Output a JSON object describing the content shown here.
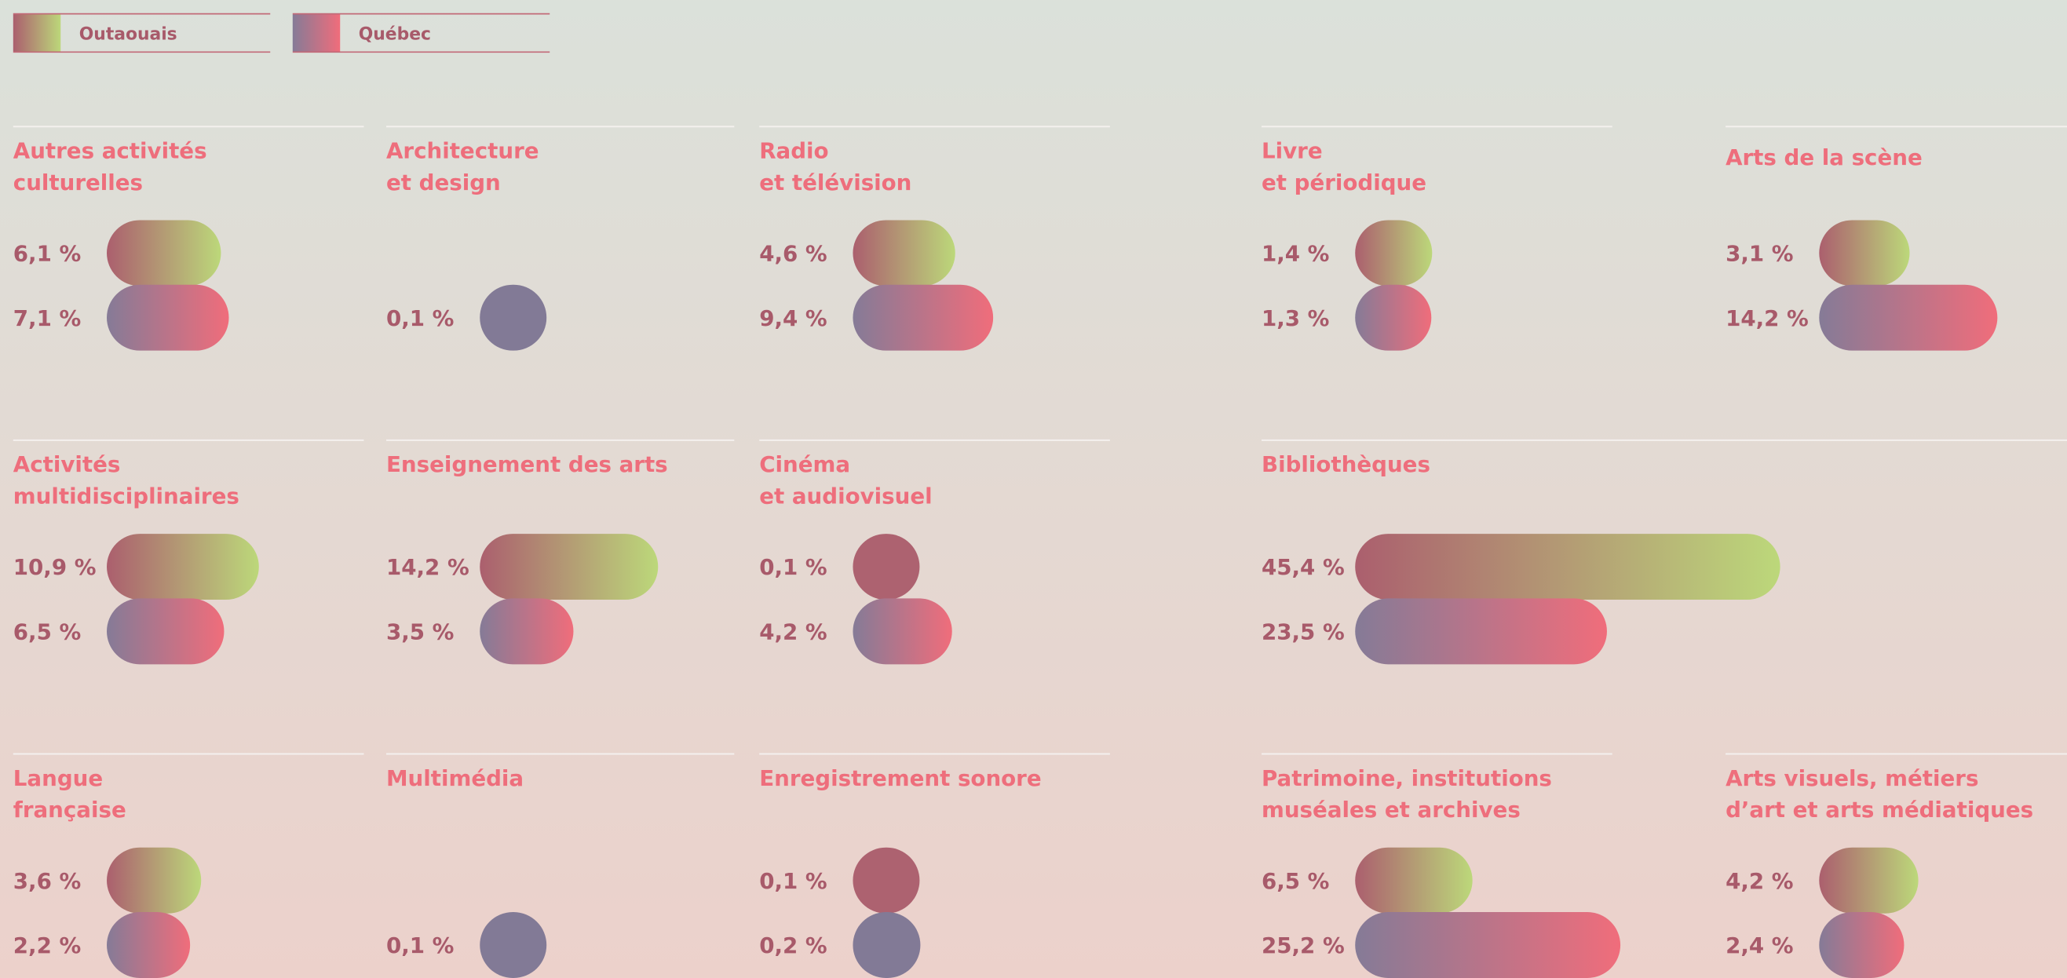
{
  "legend": [
    {
      "name": "Outaouais"
    },
    {
      "name": "Québec"
    }
  ],
  "panels": [
    {
      "title": [
        "Autres activités",
        "culturelles"
      ],
      "values": [
        6.1,
        7.1
      ],
      "value_labels": [
        "6,1 %",
        "7,1 %"
      ]
    },
    {
      "title": [
        "Architecture",
        "et design"
      ],
      "values": [
        null,
        0.1
      ],
      "value_labels": [
        null,
        "0,1 %"
      ]
    },
    {
      "title": [
        "Radio",
        "et télévision"
      ],
      "values": [
        4.6,
        9.4
      ],
      "value_labels": [
        "4,6 %",
        "9,4 %"
      ]
    },
    {
      "title": [
        "Livre",
        "et périodique"
      ],
      "values": [
        1.4,
        1.3
      ],
      "value_labels": [
        "1,4 %",
        "1,3 %"
      ]
    },
    {
      "title": [
        "Arts de la scène"
      ],
      "values": [
        3.1,
        14.2
      ],
      "value_labels": [
        "3,1 %",
        "14,2 %"
      ]
    },
    {
      "title": [
        "Activités",
        "multidisciplinaires"
      ],
      "values": [
        10.9,
        6.5
      ],
      "value_labels": [
        "10,9 %",
        "6,5 %"
      ]
    },
    {
      "title": [
        "Enseignement des arts"
      ],
      "values": [
        14.2,
        3.5
      ],
      "value_labels": [
        "14,2 %",
        "3,5 %"
      ]
    },
    {
      "title": [
        "Cinéma",
        "et audiovisuel"
      ],
      "values": [
        0.1,
        4.2
      ],
      "value_labels": [
        "0,1 %",
        "4,2 %"
      ]
    },
    {
      "title": [
        "Bibliothèques"
      ],
      "values": [
        45.4,
        23.5
      ],
      "value_labels": [
        "45,4 %",
        "23,5 %"
      ]
    },
    {
      "title": [
        "Langue",
        "française"
      ],
      "values": [
        3.6,
        2.2
      ],
      "value_labels": [
        "3,6 %",
        "2,2 %"
      ]
    },
    {
      "title": [
        "Multimédia"
      ],
      "values": [
        null,
        0.1
      ],
      "value_labels": [
        null,
        "0,1 %"
      ]
    },
    {
      "title": [
        "Enregistrement sonore"
      ],
      "values": [
        0.1,
        0.2
      ],
      "value_labels": [
        "0,1 %",
        "0,2 %"
      ]
    },
    {
      "title": [
        "Patrimoine, institutions",
        "muséales et archives"
      ],
      "values": [
        6.5,
        25.2
      ],
      "value_labels": [
        "6,5 %",
        "25,2 %"
      ]
    },
    {
      "title": [
        "Arts visuels, métiers",
        "d’art et arts médiatiques"
      ],
      "values": [
        4.2,
        2.4
      ],
      "value_labels": [
        "4,2 %",
        "2,4 %"
      ]
    }
  ]
}
